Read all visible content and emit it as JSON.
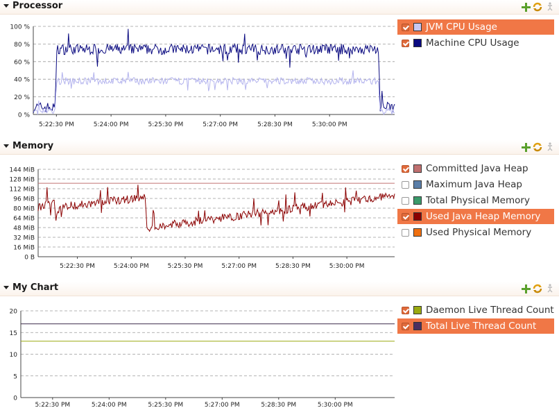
{
  "sections": [
    {
      "title": "Processor",
      "legend": [
        {
          "label": "JVM CPU Usage",
          "checked": true,
          "selected": true,
          "color": "#c8c8f2"
        },
        {
          "label": "Machine CPU Usage",
          "checked": true,
          "selected": false,
          "color": "#0a0a80"
        }
      ],
      "chart_data": {
        "type": "line",
        "y_ticks": [
          "100 %",
          "80 %",
          "60 %",
          "40 %",
          "20 %",
          "0 %"
        ],
        "x_ticks": [
          "5:22:30 PM",
          "5:24:00 PM",
          "5:25:30 PM",
          "5:27:00 PM",
          "5:28:30 PM",
          "5:30:00 PM"
        ],
        "ylim": [
          0,
          100
        ],
        "series": [
          {
            "name": "Machine CPU Usage",
            "color": "#0a0a80",
            "x": [
              0,
              0.06,
              0.065,
              0.5,
              0.955,
              0.96,
              1
            ],
            "y": [
              8,
              8,
              74,
              74,
              74,
              8,
              8
            ],
            "noise": 6
          },
          {
            "name": "JVM CPU Usage",
            "color": "#b4b4ee",
            "x": [
              0,
              0.06,
              0.065,
              0.5,
              0.955,
              0.96,
              1
            ],
            "y": [
              3,
              3,
              38,
              38,
              38,
              3,
              3
            ],
            "noise": 4
          }
        ]
      }
    },
    {
      "title": "Memory",
      "legend": [
        {
          "label": "Committed Java Heap",
          "checked": true,
          "selected": false,
          "color": "#c07070"
        },
        {
          "label": "Maximum Java Heap",
          "checked": false,
          "selected": false,
          "color": "#5a7ea8"
        },
        {
          "label": "Total Physical Memory",
          "checked": false,
          "selected": false,
          "color": "#3a9a6a"
        },
        {
          "label": "Used Java Heap Memory",
          "checked": true,
          "selected": true,
          "color": "#8b0000"
        },
        {
          "label": "Used Physical Memory",
          "checked": false,
          "selected": false,
          "color": "#f07010"
        }
      ],
      "chart_data": {
        "type": "line",
        "y_ticks": [
          "144 MiB",
          "128 MiB",
          "112 MiB",
          "96 MiB",
          "80 MiB",
          "64 MiB",
          "48 MiB",
          "32 MiB",
          "16 MiB",
          "0 B"
        ],
        "x_ticks": [
          "5:22:30 PM",
          "5:24:00 PM",
          "5:25:30 PM",
          "5:27:00 PM",
          "5:28:30 PM",
          "5:30:00 PM"
        ],
        "ylim": [
          0,
          144
        ],
        "series": [
          {
            "name": "Committed Java Heap",
            "color": "#c07070",
            "x": [
              0,
              1
            ],
            "y": [
              121,
              121
            ],
            "noise": 0
          },
          {
            "name": "Used Java Heap Memory",
            "color": "#8b0000",
            "x": [
              0,
              0.045,
              0.05,
              0.06,
              0.3,
              0.305,
              0.31,
              0.96,
              1
            ],
            "y": [
              80,
              93,
              66,
              82,
              98,
              42,
              48,
              98,
              103
            ],
            "noise": 7
          }
        ]
      }
    },
    {
      "title": "My Chart",
      "legend": [
        {
          "label": "Daemon Live Thread Count",
          "checked": true,
          "selected": false,
          "color": "#9aaa10"
        },
        {
          "label": "Total Live Thread Count",
          "checked": true,
          "selected": true,
          "color": "#4a3060"
        }
      ],
      "chart_data": {
        "type": "line",
        "y_ticks": [
          "20",
          "15",
          "10",
          "5",
          "0"
        ],
        "x_ticks": [
          "5:22:30 PM",
          "5:24:00 PM",
          "5:25:30 PM",
          "5:27:00 PM",
          "5:28:30 PM",
          "5:30:00 PM"
        ],
        "ylim": [
          0,
          20
        ],
        "series": [
          {
            "name": "Total Live Thread Count",
            "color": "#3a2848",
            "x": [
              0,
              1
            ],
            "y": [
              17,
              17
            ],
            "noise": 0
          },
          {
            "name": "Daemon Live Thread Count",
            "color": "#9aaa10",
            "x": [
              0,
              1
            ],
            "y": [
              13,
              13
            ],
            "noise": 0
          }
        ]
      }
    }
  ],
  "icons": {
    "add": "add-icon",
    "refresh": "refresh-icon",
    "accessibility": "accessibility-icon"
  }
}
